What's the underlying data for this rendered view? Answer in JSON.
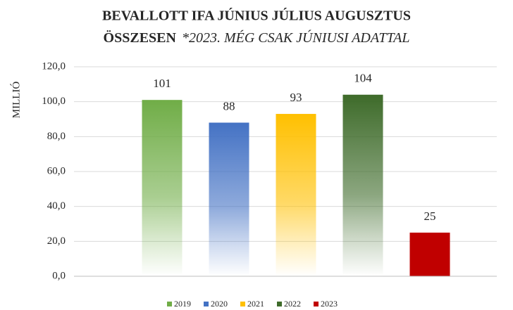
{
  "chart_data": {
    "type": "bar",
    "title": [
      "BEVALLOTT IFA JÚNIUS JÚLIUS AUGUSZTUS",
      "ÖSSZESEN"
    ],
    "subtitle": "*2023. MÉG CSAK JÚNIUSI ADATTAL",
    "y_label": "MILLIÓ",
    "categories": [
      null
    ],
    "series": [
      {
        "name": "2019",
        "color": "#70ad47",
        "gradient": true,
        "values": [
          101
        ]
      },
      {
        "name": "2020",
        "color": "#4472c4",
        "gradient": true,
        "values": [
          88
        ]
      },
      {
        "name": "2021",
        "color": "#ffc000",
        "gradient": true,
        "values": [
          93
        ]
      },
      {
        "name": "2022",
        "color": "#3e6b2a",
        "gradient": true,
        "values": [
          104
        ]
      },
      {
        "name": "2023",
        "color": "#c00000",
        "gradient": false,
        "values": [
          25
        ]
      }
    ],
    "ylim": [
      0,
      120
    ],
    "yticks": [
      {
        "value": 0,
        "label": "0,0"
      },
      {
        "value": 20,
        "label": "20,0"
      },
      {
        "value": 40,
        "label": "40,0"
      },
      {
        "value": 60,
        "label": "60,0"
      },
      {
        "value": 80,
        "label": "80,0"
      },
      {
        "value": 100,
        "label": "100,0"
      },
      {
        "value": 120,
        "label": "120,0"
      }
    ],
    "grid": true,
    "legend": "bottom"
  }
}
